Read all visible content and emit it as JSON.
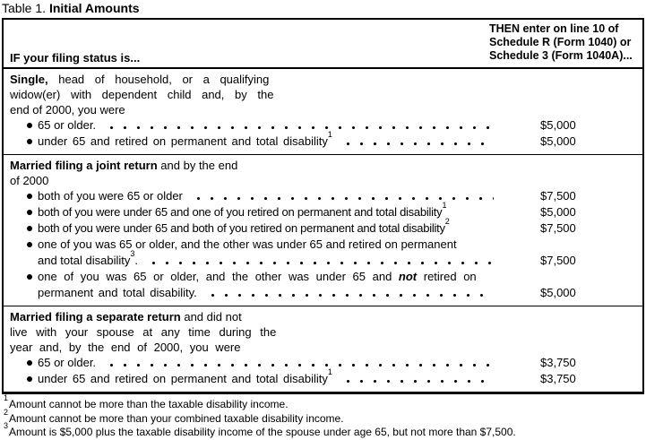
{
  "title": {
    "prefix": "Table 1. ",
    "bold": "Initial Amounts"
  },
  "table": {
    "header": {
      "if_label": "IF your filing status is...",
      "then_lines": [
        "THEN enter on line 10 of",
        "Schedule R (Form 1040) or",
        "Schedule 3 (Form 1040A)..."
      ]
    },
    "sections": [
      {
        "intro": {
          "lead": "Single,",
          "line1_rest": " head of household, or a qualifying",
          "line2": "widow(er) with dependent child and, by the",
          "line3": "end of 2000, you were"
        },
        "items": [
          {
            "text": "65 or older.",
            "sup": "",
            "amount": "$5,000"
          },
          {
            "text": "under 65 and retired on permanent and total disability",
            "sup": "1",
            "amount": "$5,000"
          }
        ]
      },
      {
        "intro": {
          "lead": "Married filing a joint return",
          "line1_rest": " and by the end",
          "line2": "of 2000"
        },
        "items": [
          {
            "text": "both of you were 65 or older",
            "sup": "",
            "amount": "$7,500"
          },
          {
            "text": "both of you were under 65 and one of you retired on permanent and total disability",
            "sup": "1",
            "amount": "$5,000"
          },
          {
            "text": "both of you were under 65 and both of you retired on permanent and total disability",
            "sup": "2",
            "amount": "$7,500"
          },
          {
            "line1": "one of you was 65 or older, and the other was under 65 and retired on permanent",
            "line2": "and total disability",
            "sup": "3",
            "after_sup": ".",
            "amount": "$7,500"
          },
          {
            "line1_pre": "one of you was 65 or older, and the other was under 65 and ",
            "line1_em": "not",
            "line1_post": " retired on",
            "line2": "permanent and total disability.",
            "amount": "$5,000"
          }
        ]
      },
      {
        "intro": {
          "lead": "Married filing a separate return",
          "line1_rest": " and did not",
          "line2": "live with your spouse at any time during the",
          "line3": "year and, by the end of 2000, you were"
        },
        "items": [
          {
            "text": "65 or older.",
            "sup": "",
            "amount": "$3,750"
          },
          {
            "text": "under 65 and retired on permanent and total disability",
            "sup": "1",
            "amount": "$3,750"
          }
        ]
      }
    ]
  },
  "footnotes": [
    {
      "sup": "1",
      "text": "Amount cannot be more than the taxable disability income."
    },
    {
      "sup": "2",
      "text": "Amount cannot be more than your combined taxable disability income."
    },
    {
      "sup": "3",
      "text": "Amount is $5,000 plus the taxable disability income of the spouse under age 65, but not more than $7,500."
    }
  ]
}
